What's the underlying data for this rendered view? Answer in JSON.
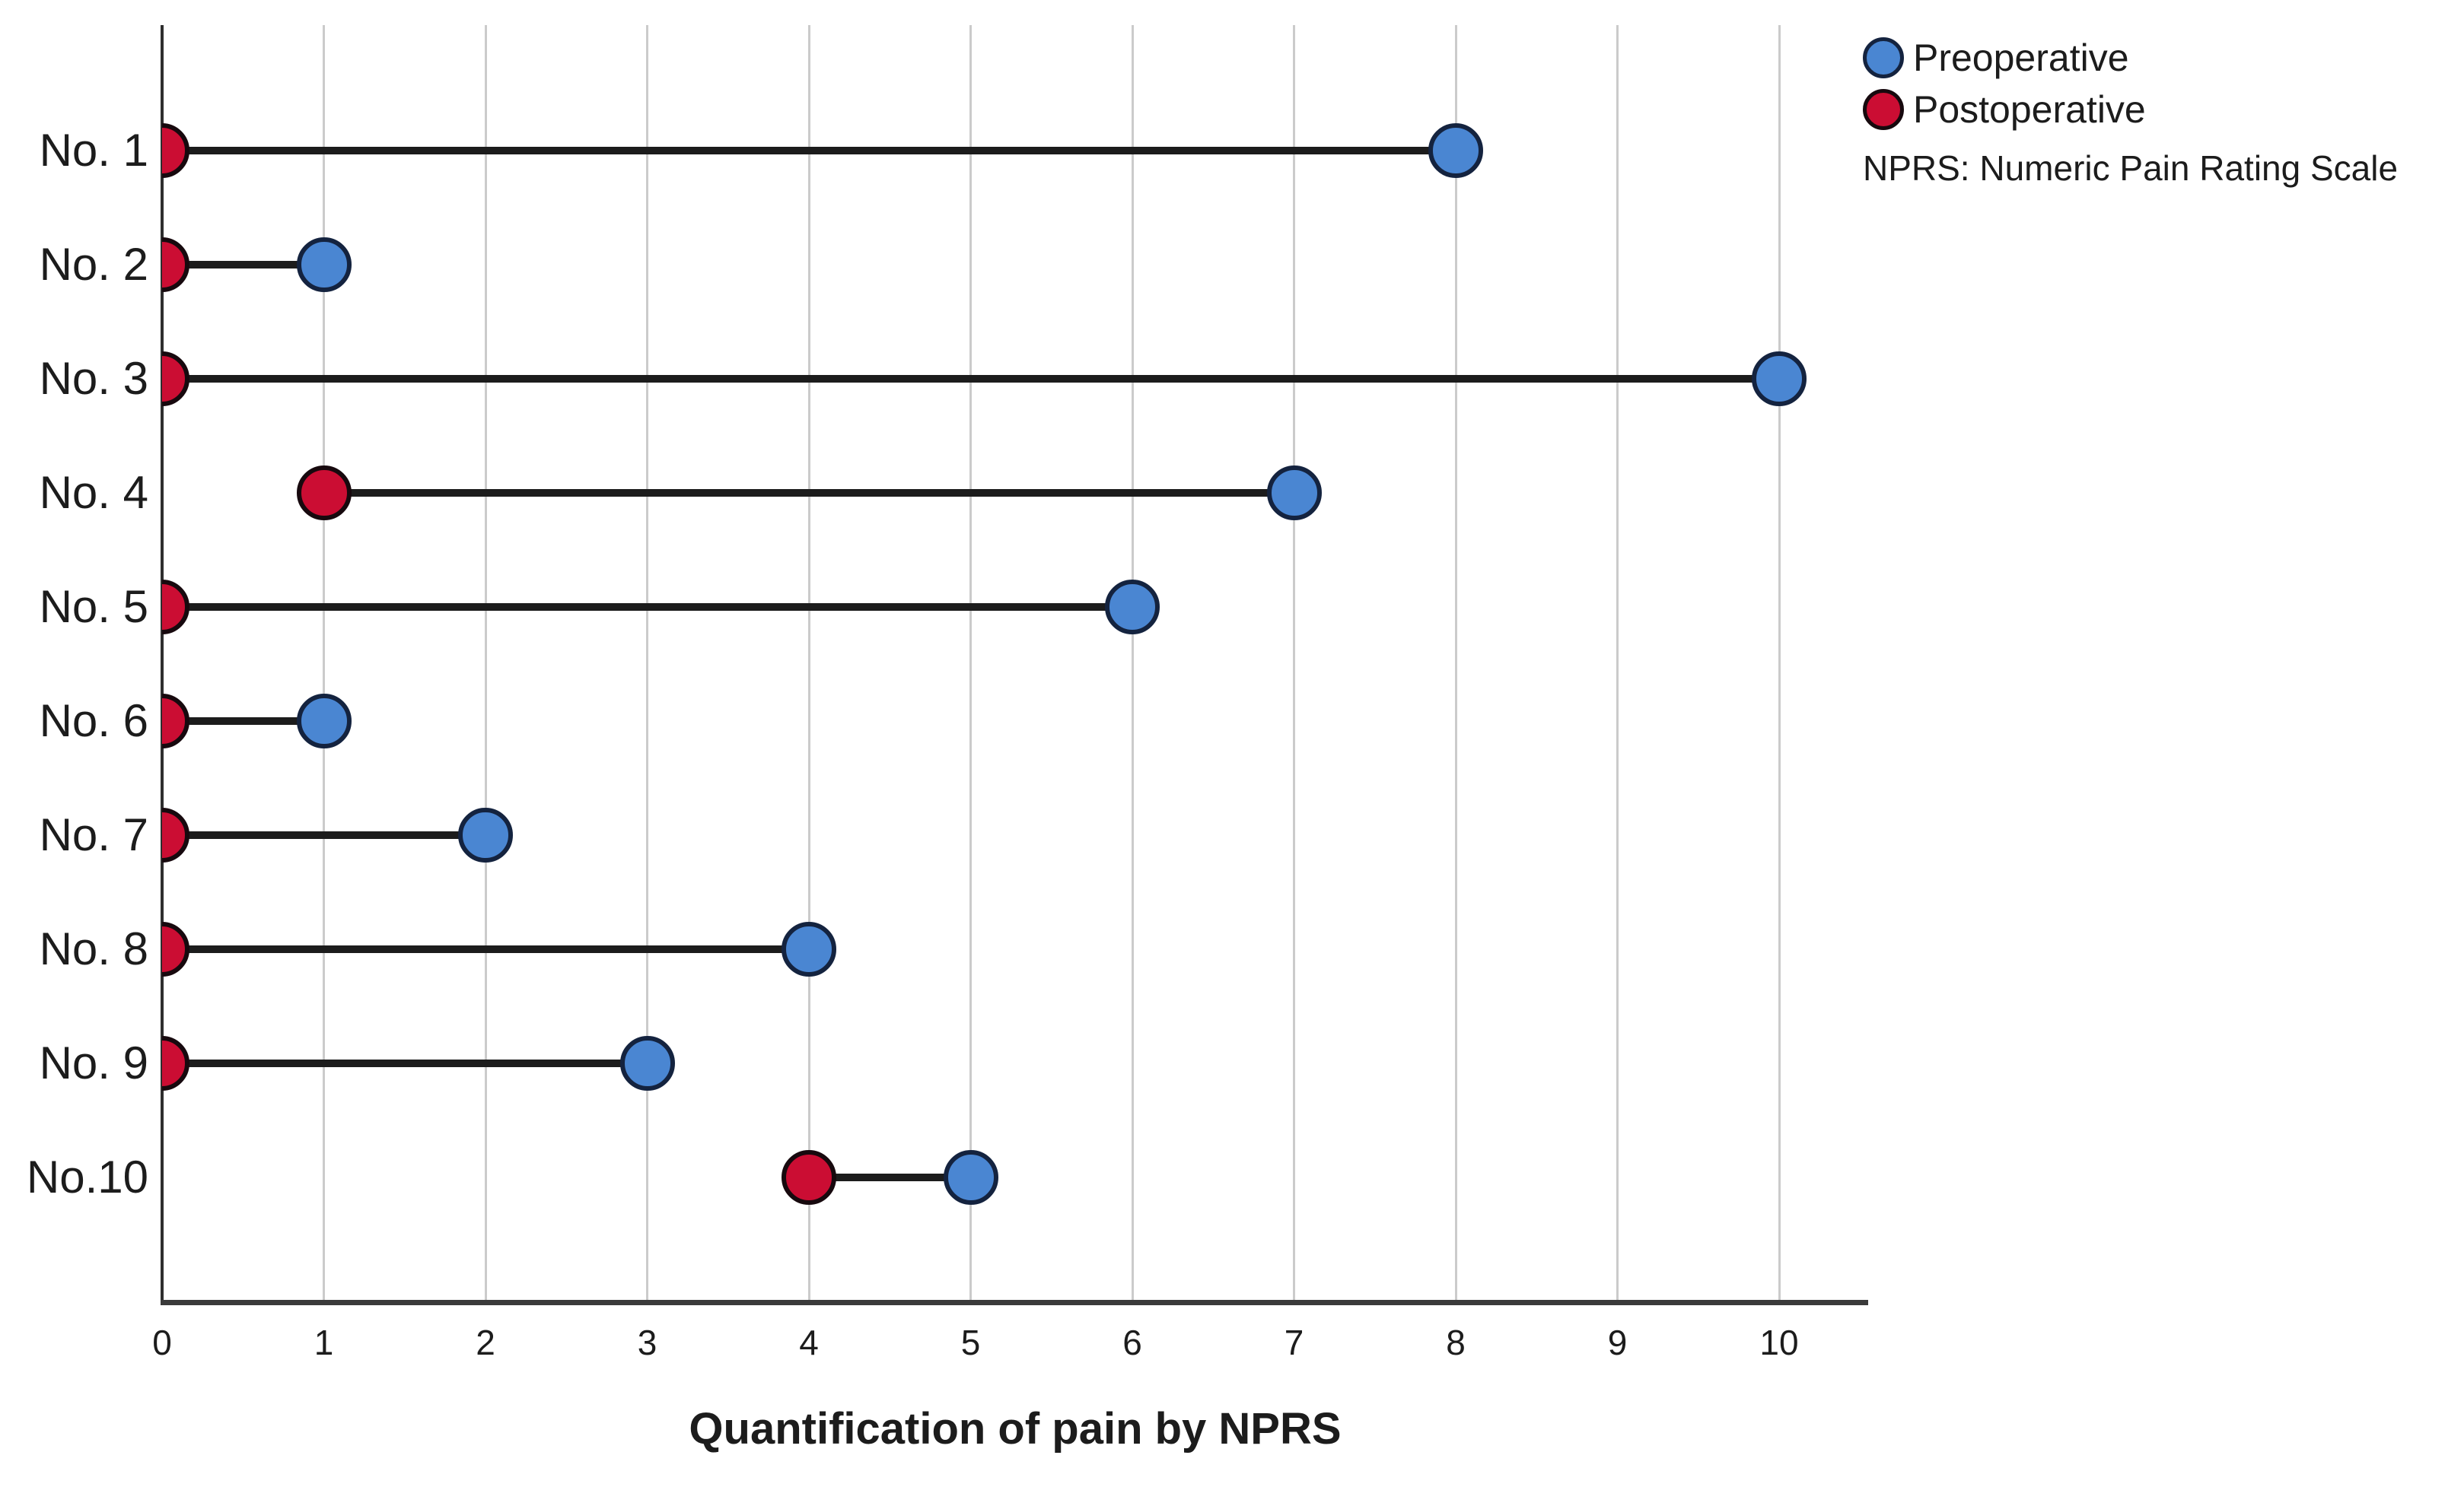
{
  "chart_data": {
    "type": "dumbbell",
    "title": "",
    "xlabel": "Quantification of pain by NPRS",
    "ylabel": "",
    "categories": [
      "No. 1",
      "No. 2",
      "No. 3",
      "No. 4",
      "No. 5",
      "No. 6",
      "No. 7",
      "No. 8",
      "No. 9",
      "No.10"
    ],
    "series": [
      {
        "name": "Preoperative",
        "color": "#4a86d2",
        "values": [
          8,
          1,
          10,
          7,
          6,
          1,
          2,
          4,
          3,
          5
        ]
      },
      {
        "name": "Postoperative",
        "color": "#cb0d33",
        "values": [
          0,
          0,
          0,
          1,
          0,
          0,
          0,
          0,
          0,
          4
        ]
      }
    ],
    "xlim": [
      0,
      10.5
    ],
    "xticks": [
      0,
      1,
      2,
      3,
      4,
      5,
      6,
      7,
      8,
      9,
      10
    ],
    "grid": "vertical",
    "legend_position": "top-right",
    "note": "NPRS: Numeric Pain Rating Scale",
    "colors": {
      "preoperative_fill": "#4a86d2",
      "preoperative_border": "#14233f",
      "postoperative_fill": "#cb0d33",
      "postoperative_border": "#17090e",
      "connector": "#1c1c1c",
      "gridline": "#cbcbcb",
      "axis": "#3a3a3a"
    }
  }
}
